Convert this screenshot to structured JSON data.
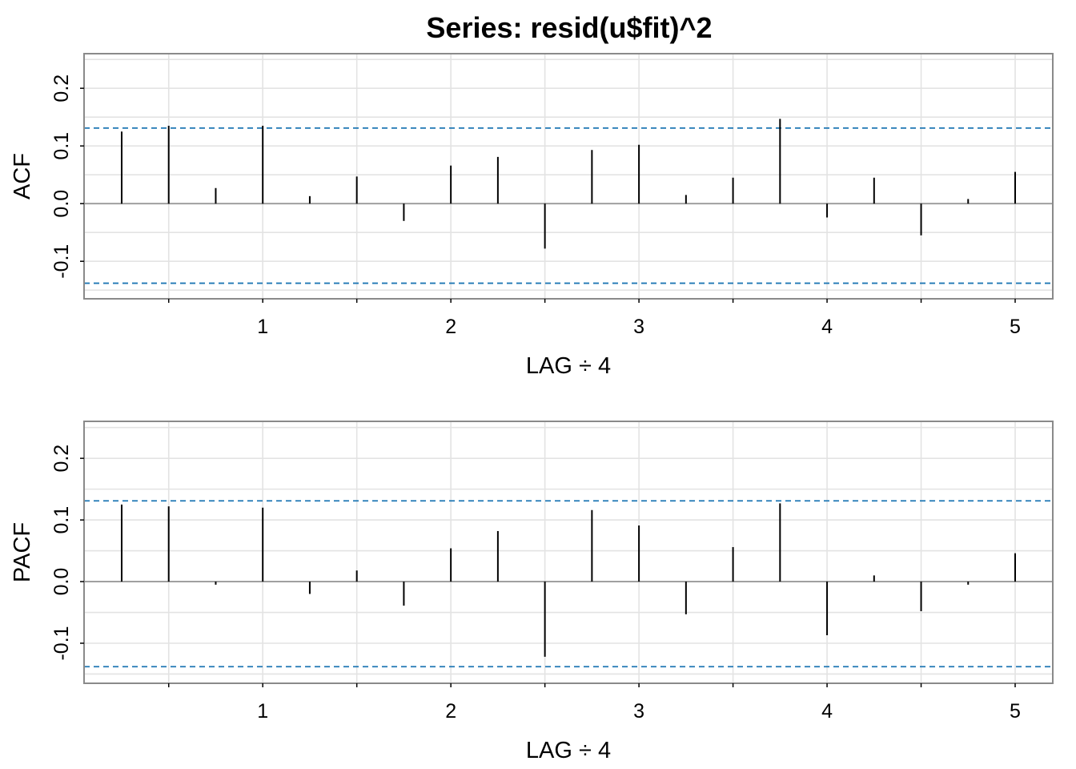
{
  "title": "Series:  resid(u$fit)^2",
  "chart_data": [
    {
      "type": "bar",
      "name": "ACF",
      "ylabel": "ACF",
      "xlabel": "LAG ÷ 4",
      "xlim": [
        0.05,
        5.2
      ],
      "ylim": [
        -0.165,
        0.26
      ],
      "x_ticks": [
        1,
        2,
        3,
        4,
        5
      ],
      "y_ticks": [
        -0.1,
        0.0,
        0.1,
        0.2
      ],
      "y_tick_labels": [
        "-0.1",
        "0.0",
        "0.1",
        "0.2"
      ],
      "grid": true,
      "confidence_bounds": [
        0.131,
        -0.138
      ],
      "x": [
        0.25,
        0.5,
        0.75,
        1.0,
        1.25,
        1.5,
        1.75,
        2.0,
        2.25,
        2.5,
        2.75,
        3.0,
        3.25,
        3.5,
        3.75,
        4.0,
        4.25,
        4.5,
        4.75,
        5.0
      ],
      "values": [
        0.125,
        0.135,
        0.027,
        0.135,
        0.013,
        0.047,
        -0.03,
        0.066,
        0.081,
        -0.078,
        0.093,
        0.102,
        0.015,
        0.045,
        0.147,
        -0.024,
        0.045,
        -0.055,
        0.008,
        0.055
      ]
    },
    {
      "type": "bar",
      "name": "PACF",
      "ylabel": "PACF",
      "xlabel": "LAG ÷ 4",
      "xlim": [
        0.05,
        5.2
      ],
      "ylim": [
        -0.165,
        0.26
      ],
      "x_ticks": [
        1,
        2,
        3,
        4,
        5
      ],
      "y_ticks": [
        -0.1,
        0.0,
        0.1,
        0.2
      ],
      "y_tick_labels": [
        "-0.1",
        "0.0",
        "0.1",
        "0.2"
      ],
      "grid": true,
      "confidence_bounds": [
        0.131,
        -0.138
      ],
      "x": [
        0.25,
        0.5,
        0.75,
        1.0,
        1.25,
        1.5,
        1.75,
        2.0,
        2.25,
        2.5,
        2.75,
        3.0,
        3.25,
        3.5,
        3.75,
        4.0,
        4.25,
        4.5,
        4.75,
        5.0
      ],
      "values": [
        0.125,
        0.122,
        -0.005,
        0.12,
        -0.02,
        0.018,
        -0.039,
        0.054,
        0.082,
        -0.122,
        0.116,
        0.091,
        -0.053,
        0.056,
        0.127,
        -0.087,
        0.01,
        -0.048,
        -0.005,
        0.046
      ]
    }
  ]
}
